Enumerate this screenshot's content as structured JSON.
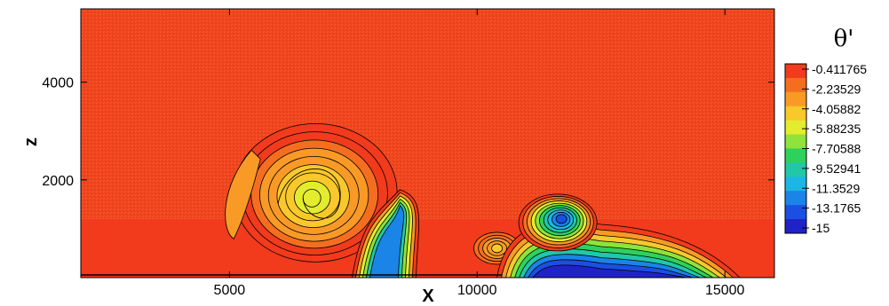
{
  "chart_data": {
    "type": "heatmap",
    "title": "",
    "xlabel": "X",
    "ylabel": "z",
    "xlim": [
      2000,
      16000
    ],
    "ylim": [
      0,
      5500
    ],
    "x_ticks": [
      5000,
      10000,
      15000
    ],
    "y_ticks": [
      2000,
      4000
    ],
    "grid": false,
    "background_value": -0.411765,
    "colorbar": {
      "title": "θ'",
      "placement": "right",
      "levels": [
        "-0.411765",
        "-2.23529",
        "-4.05882",
        "-5.88235",
        "-7.70588",
        "-9.52941",
        "-11.3529",
        "-13.1765",
        "-15"
      ],
      "colors": [
        "#f23a1c",
        "#f56e20",
        "#f99a27",
        "#f9c82b",
        "#e3ec2e",
        "#8fe33a",
        "#2ed15b",
        "#21c7a7",
        "#1cb6e5",
        "#1a84e7",
        "#1b4fe3",
        "#1f22c8"
      ]
    },
    "features": [
      {
        "name": "",
        "x": 6700,
        "z": 1700,
        "min_level": -5.88235
      },
      {
        "name": "",
        "x": 8300,
        "z": 900,
        "min_level": -11.3529
      },
      {
        "name": "",
        "x": 10400,
        "z": 600,
        "min_level": -4.05882
      },
      {
        "name": "",
        "x": 11700,
        "z": 1200,
        "min_level": -13.1765
      },
      {
        "name": "",
        "x": 12500,
        "z": 200,
        "min_level": -15
      }
    ]
  }
}
